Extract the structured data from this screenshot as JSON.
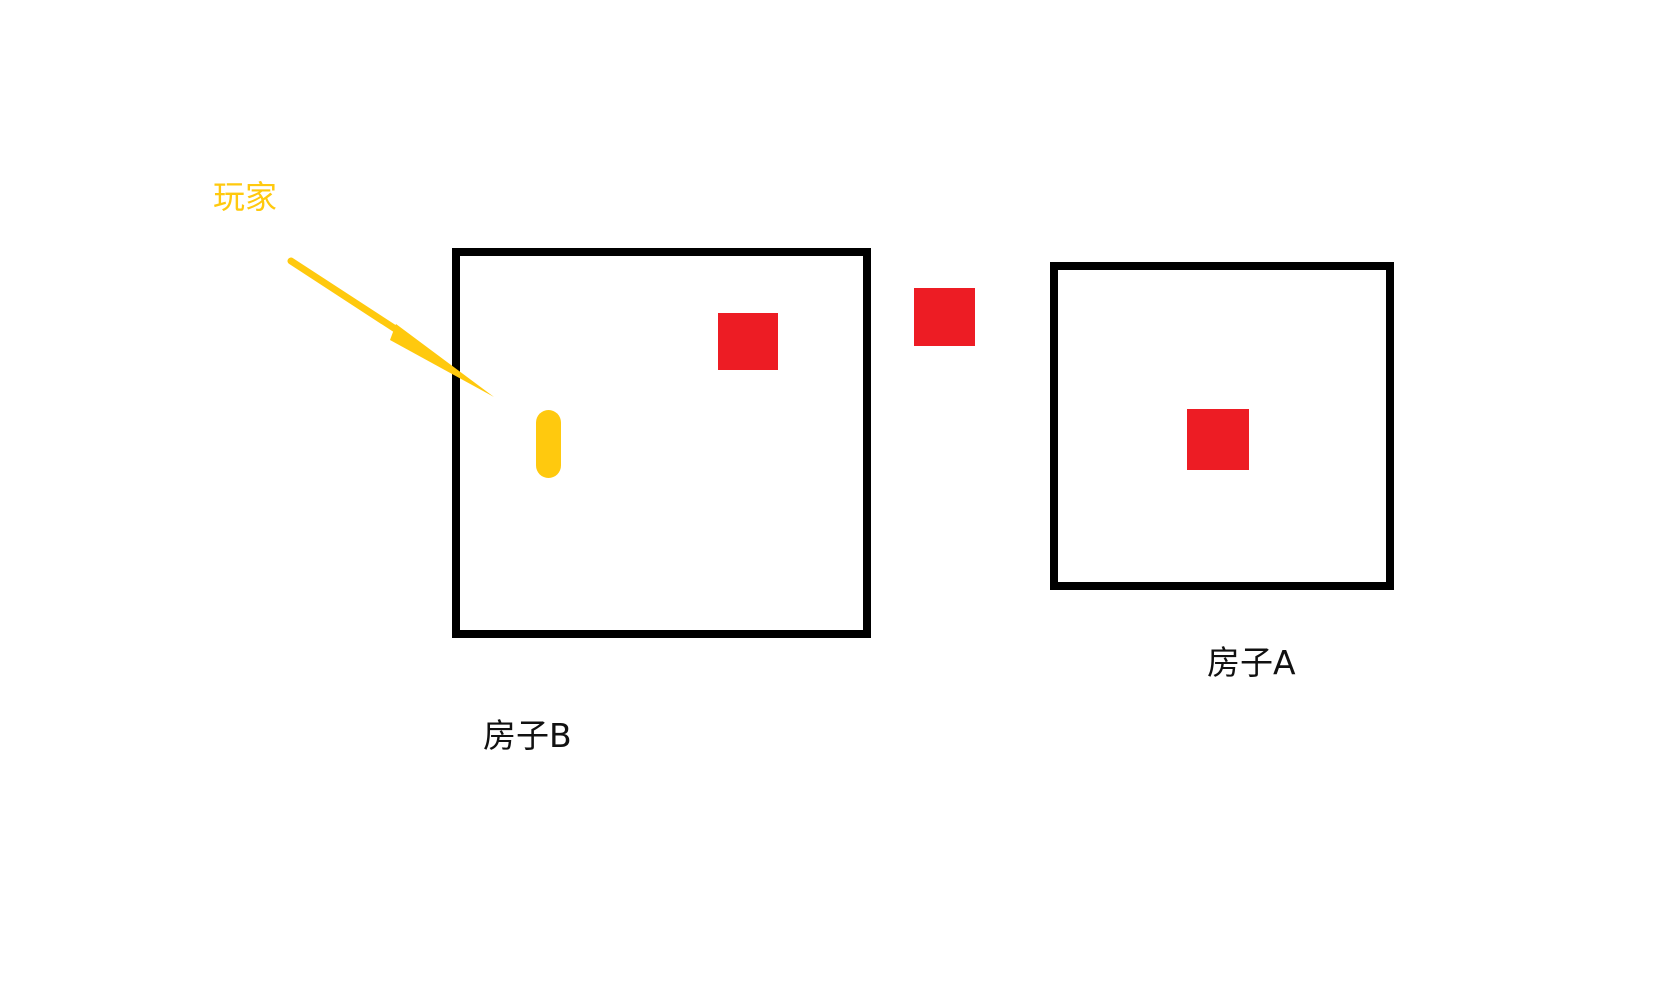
{
  "player": {
    "label": "玩家"
  },
  "houses": {
    "house_b": {
      "label": "房子B"
    },
    "house_a": {
      "label": "房子A"
    }
  },
  "colors": {
    "background": "#ffffff",
    "house_border": "#000000",
    "object": "#ed1c24",
    "player": "#ffc90e",
    "text": "#111111"
  }
}
